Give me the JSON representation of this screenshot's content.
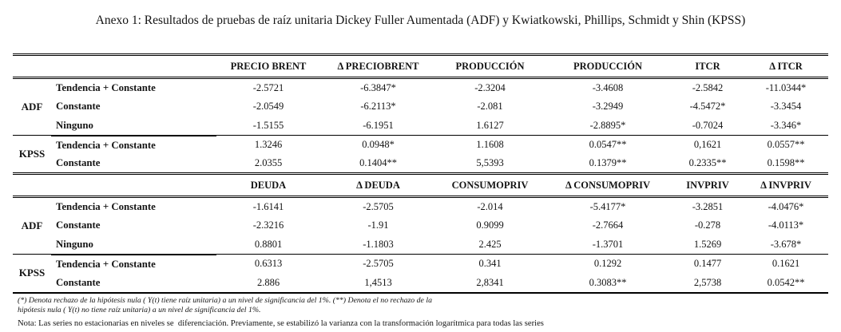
{
  "title": "Anexo 1: Resultados de pruebas de raíz unitaria Dickey Fuller Aumentada (ADF) y Kwiatkowski, Phillips, Schmidt y Shin (KPSS)",
  "tables": [
    {
      "columns": [
        "PRECIO BRENT",
        "Δ PRECIOBRENT",
        "PRODUCCIÓN",
        "PRODUCCIÓN",
        "ITCR",
        "Δ ITCR"
      ],
      "sections": [
        {
          "test": "ADF",
          "rows": [
            {
              "label": "Tendencia + Constante",
              "values": [
                "-2.5721",
                "-6.3847*",
                "-2.3204",
                "-3.4608",
                "-2.5842",
                "-11.0344*"
              ]
            },
            {
              "label": "Constante",
              "values": [
                "-2.0549",
                "-6.2113*",
                "-2.081",
                "-3.2949",
                "-4.5472*",
                "-3.3454"
              ]
            },
            {
              "label": "Ninguno",
              "values": [
                "-1.5155",
                "-6.1951",
                "1.6127",
                "-2.8895*",
                "-0.7024",
                "-3.346*"
              ]
            }
          ]
        },
        {
          "test": "KPSS",
          "rows": [
            {
              "label": "Tendencia + Constante",
              "values": [
                "1.3246",
                "0.0948*",
                "1.1608",
                "0.0547**",
                "0,1621",
                "0.0557**"
              ]
            },
            {
              "label": "Constante",
              "values": [
                "2.0355",
                "0.1404**",
                "5,5393",
                "0.1379**",
                "0.2335**",
                "0.1598**"
              ]
            }
          ]
        }
      ]
    },
    {
      "columns": [
        "DEUDA",
        "Δ DEUDA",
        "CONSUMOPRIV",
        "Δ CONSUMOPRIV",
        "INVPRIV",
        "Δ INVPRIV"
      ],
      "sections": [
        {
          "test": "ADF",
          "rows": [
            {
              "label": "Tendencia + Constante",
              "values": [
                "-1.6141",
                "-2.5705",
                "-2.014",
                "-5.4177*",
                "-3.2851",
                "-4.0476*"
              ]
            },
            {
              "label": "Constante",
              "values": [
                "-2.3216",
                "-1.91",
                "0.9099",
                "-2.7664",
                "-0.278",
                "-4.0113*"
              ]
            },
            {
              "label": "Ninguno",
              "values": [
                "0.8801",
                "-1.1803",
                "2.425",
                "-1.3701",
                "1.5269",
                "-3.678*"
              ]
            }
          ]
        },
        {
          "test": "KPSS",
          "rows": [
            {
              "label": "Tendencia + Constante",
              "values": [
                "0.6313",
                "-2.5705",
                "0.341",
                "0.1292",
                "0.1477",
                "0.1621"
              ]
            },
            {
              "label": "Constante",
              "values": [
                "2.886",
                "1,4513",
                "2,8341",
                "0.3083**",
                "2,5738",
                "0.0542**"
              ]
            }
          ]
        }
      ]
    }
  ],
  "footnotes": {
    "sig_line1": "(*) Denota rechazo de la hipótesis nula ( Y(t) tiene raíz unitaria) a un nivel de significancia del 1%. (**) Denota el no rechazo de la",
    "sig_line2": "hipótesis nula ( Y(t) no tiene raíz unitaria) a un nivel de significancia del 1%.",
    "nota": "Nota: Las series no estacionarias en niveles se  diferenciación. Previamente, se estabilizó la varianza con la transformación logarítmica para todas las series"
  }
}
